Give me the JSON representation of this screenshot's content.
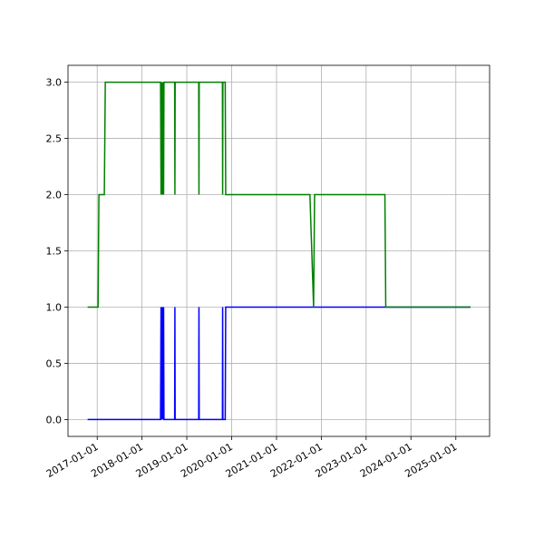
{
  "chart_data": {
    "type": "line",
    "x": [
      "2016-10-15",
      "2017-01-08",
      "2017-01-15",
      "2017-02-28",
      "2017-03-08",
      "2018-06-01",
      "2018-06-05",
      "2018-06-08",
      "2018-06-12",
      "2018-06-15",
      "2018-06-19",
      "2018-06-22",
      "2018-06-26",
      "2018-06-29",
      "2018-09-24",
      "2018-09-26",
      "2018-09-28",
      "2019-04-08",
      "2019-04-10",
      "2019-04-12",
      "2019-10-18",
      "2019-10-20",
      "2019-10-22",
      "2019-11-10",
      "2019-11-14",
      "2021-09-30",
      "2021-10-30",
      "2021-11-07",
      "2023-06-03",
      "2023-06-10",
      "2025-05-01"
    ],
    "series": [
      {
        "color": "#0000ff",
        "values": [
          0,
          0,
          0,
          0,
          0,
          0,
          1,
          0,
          1,
          0,
          1,
          0,
          1,
          0,
          0,
          1,
          0,
          0,
          1,
          0,
          0,
          1,
          0,
          0,
          1,
          1,
          1,
          1,
          1,
          1,
          1
        ]
      },
      {
        "color": "#008000",
        "values": [
          1,
          1,
          2,
          2,
          3,
          3,
          2,
          3,
          2,
          3,
          2,
          3,
          2,
          3,
          3,
          2,
          3,
          3,
          2,
          3,
          3,
          2,
          3,
          3,
          2,
          2,
          1,
          2,
          2,
          1,
          1
        ]
      }
    ],
    "xlim": [
      "2016-05-08",
      "2025-10-03"
    ],
    "ylim": [
      -0.15,
      3.15
    ],
    "xticks": [
      "2017-01-01",
      "2018-01-01",
      "2019-01-01",
      "2020-01-01",
      "2021-01-01",
      "2022-01-01",
      "2023-01-01",
      "2024-01-01",
      "2025-01-01"
    ],
    "yticks": [
      {
        "value": 0,
        "label": "0.0"
      },
      {
        "value": 0.5,
        "label": "0.5"
      },
      {
        "value": 1,
        "label": "1.0"
      },
      {
        "value": 1.5,
        "label": "1.5"
      },
      {
        "value": 2,
        "label": "2.0"
      },
      {
        "value": 2.5,
        "label": "2.5"
      },
      {
        "value": 3,
        "label": "3.0"
      }
    ],
    "grid": true
  }
}
